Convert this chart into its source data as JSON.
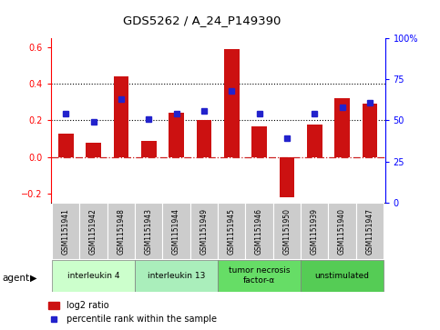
{
  "title": "GDS5262 / A_24_P149390",
  "samples": [
    "GSM1151941",
    "GSM1151942",
    "GSM1151948",
    "GSM1151943",
    "GSM1151944",
    "GSM1151949",
    "GSM1151945",
    "GSM1151946",
    "GSM1151950",
    "GSM1151939",
    "GSM1151940",
    "GSM1151947"
  ],
  "log2_ratio": [
    0.13,
    0.08,
    0.44,
    0.09,
    0.24,
    0.2,
    0.59,
    0.17,
    -0.22,
    0.18,
    0.32,
    0.29
  ],
  "percentile_pct": [
    54,
    49,
    63,
    51,
    54,
    56,
    68,
    54,
    39,
    54,
    58,
    61
  ],
  "agent_groups": [
    {
      "label": "interleukin 4",
      "start": 0,
      "end": 3,
      "color": "#ccffcc"
    },
    {
      "label": "interleukin 13",
      "start": 3,
      "end": 6,
      "color": "#aaeebb"
    },
    {
      "label": "tumor necrosis\nfactor-α",
      "start": 6,
      "end": 9,
      "color": "#66dd66"
    },
    {
      "label": "unstimulated",
      "start": 9,
      "end": 12,
      "color": "#55cc55"
    }
  ],
  "bar_color": "#cc1111",
  "dot_color": "#2222cc",
  "ylim_left": [
    -0.25,
    0.65
  ],
  "ylim_right": [
    0,
    100
  ],
  "y_right_ticks": [
    0,
    25,
    50,
    75,
    100
  ],
  "y_right_labels": [
    "0",
    "25",
    "50",
    "75",
    "100%"
  ],
  "y_left_ticks": [
    -0.2,
    0.0,
    0.2,
    0.4,
    0.6
  ],
  "hlines_dotted": [
    0.2,
    0.4
  ],
  "hline_zero_color": "#cc2222",
  "sample_box_color": "#cccccc",
  "background_color": "#ffffff"
}
